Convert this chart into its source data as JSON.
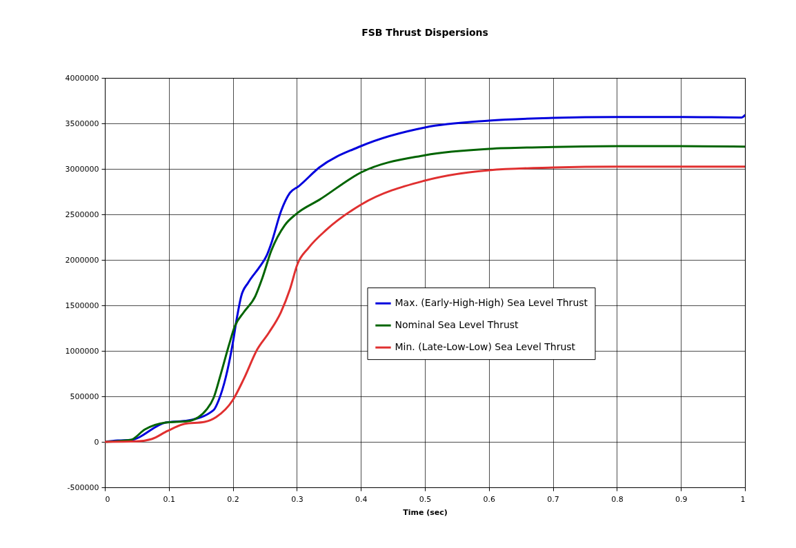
{
  "chart_data": {
    "type": "line",
    "title": "FSB Thrust Dispersions",
    "xlabel": "Time (sec)",
    "xlim": [
      0,
      1
    ],
    "xticks": [
      0,
      0.1,
      0.2,
      0.3,
      0.4,
      0.5,
      0.6,
      0.7,
      0.8,
      0.9,
      1
    ],
    "ylim": [
      -500000,
      4000000
    ],
    "yticks": [
      -500000,
      0,
      500000,
      1000000,
      1500000,
      2000000,
      2500000,
      3000000,
      3500000,
      4000000
    ],
    "grid": true,
    "legend": "right",
    "marker": "none",
    "line_style": "solid",
    "series": [
      {
        "name": "Max. (Early-High-High) Sea Level Thrust",
        "color": "#0000dd",
        "x": [
          0,
          0.02,
          0.04,
          0.095,
          0.13,
          0.17,
          0.178,
          0.189,
          0.2,
          0.206,
          0.213,
          0.224,
          0.242,
          0.253,
          0.26,
          0.275,
          0.289,
          0.303,
          0.335,
          0.4,
          0.5,
          0.6,
          0.7,
          0.8,
          0.9,
          0.995,
          1
        ],
        "values": [
          0,
          15000,
          20000,
          212000,
          235000,
          350000,
          460000,
          712000,
          1090000,
          1350000,
          1600000,
          1750000,
          1925000,
          2050000,
          2180000,
          2530000,
          2735000,
          2810000,
          3015000,
          3250000,
          3455000,
          3530000,
          3560000,
          3570000,
          3570000,
          3565000,
          3590000
        ]
      },
      {
        "name": "Nominal Sea Level Thrust",
        "color": "#006400",
        "x": [
          0,
          0.04,
          0.0625,
          0.095,
          0.13,
          0.16,
          0.17,
          0.181,
          0.195,
          0.203,
          0.217,
          0.235,
          0.246,
          0.26,
          0.281,
          0.3,
          0.335,
          0.4,
          0.5,
          0.6,
          0.7,
          0.8,
          0.9,
          1
        ],
        "values": [
          0,
          20000,
          136000,
          212000,
          227000,
          364000,
          485000,
          742000,
          1090000,
          1270000,
          1424000,
          1600000,
          1800000,
          2100000,
          2380000,
          2510000,
          2660000,
          2960000,
          3150000,
          3220000,
          3240000,
          3250000,
          3250000,
          3245000
        ]
      },
      {
        "name": "Min. (Late-Low-Low) Sea Level Thrust",
        "color": "#e03030",
        "x": [
          0,
          0.05,
          0.073,
          0.098,
          0.124,
          0.156,
          0.174,
          0.2,
          0.217,
          0.238,
          0.256,
          0.275,
          0.289,
          0.301,
          0.318,
          0.346,
          0.4,
          0.5,
          0.6,
          0.7,
          0.8,
          0.9,
          1
        ],
        "values": [
          0,
          5000,
          30000,
          120000,
          197000,
          220000,
          273000,
          460000,
          690000,
          1015000,
          1197000,
          1424000,
          1674000,
          1955000,
          2130000,
          2330000,
          2606000,
          2871000,
          2985000,
          3015000,
          3025000,
          3025000,
          3025000
        ]
      }
    ]
  }
}
